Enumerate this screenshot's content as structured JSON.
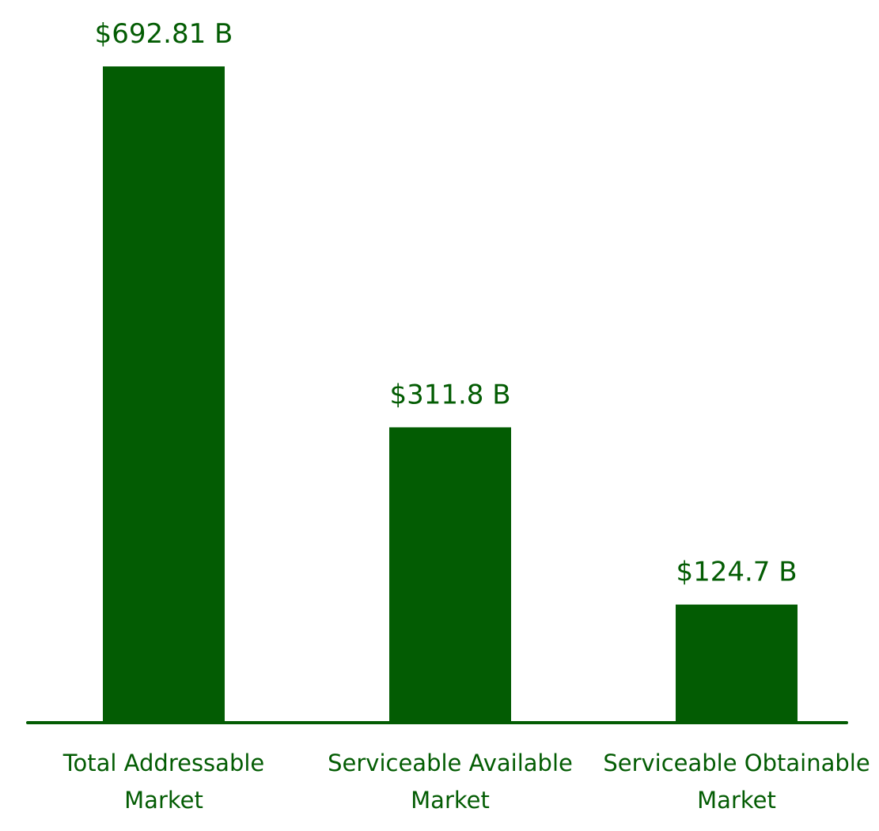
{
  "chart_data": {
    "type": "bar",
    "categories": [
      [
        "Total Addressable",
        "Market"
      ],
      [
        "Serviceable Available",
        "Market"
      ],
      [
        "Serviceable Obtainable",
        "Market"
      ]
    ],
    "values": [
      692.81,
      311.8,
      124.7
    ],
    "value_labels": [
      "$692.81 B",
      "$311.8 B",
      "$124.7 B"
    ],
    "title": "",
    "xlabel": "",
    "ylabel": "",
    "grid": false,
    "legend": "none",
    "colors": {
      "bar": "#035c03",
      "axis": "#035c03",
      "text": "#035c03"
    }
  }
}
